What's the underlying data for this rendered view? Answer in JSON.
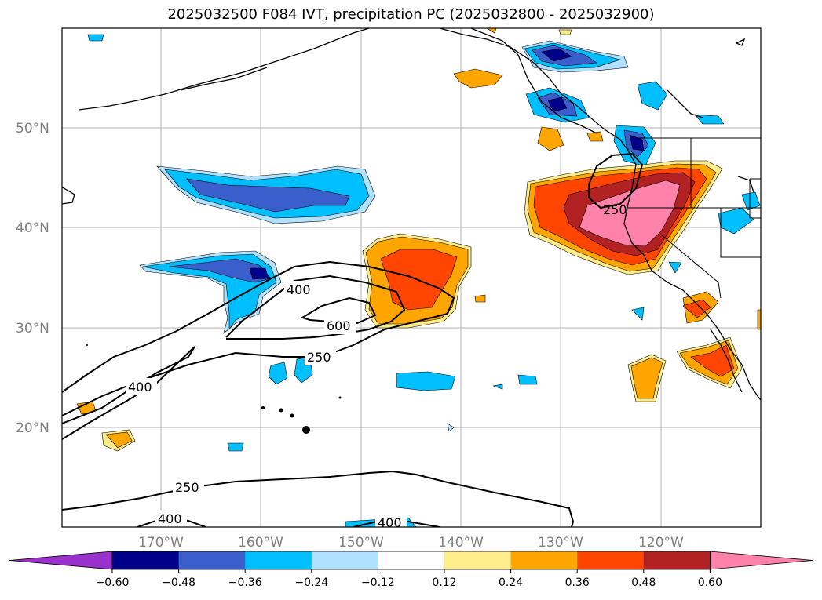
{
  "title": "2025032500 F084 IVT, precipitation PC (2025032800 - 2025032900)",
  "lat_labels": [
    "50°N",
    "40°N",
    "30°N",
    "20°N"
  ],
  "lon_labels": [
    "170°W",
    "160°W",
    "150°W",
    "140°W",
    "130°W",
    "120°W"
  ],
  "contour_labels": [
    "400",
    "600",
    "250",
    "400",
    "250",
    "400",
    "400",
    "250"
  ],
  "colorbar": {
    "ticks": [
      "−0.60",
      "−0.48",
      "−0.36",
      "−0.24",
      "−0.12",
      "0.12",
      "0.24",
      "0.36",
      "0.48",
      "0.60"
    ],
    "colors": [
      "#9932cc",
      "#00008b",
      "#3a5fcd",
      "#00bfff",
      "#b0e2ff",
      "#ffffff",
      "#ffec8b",
      "#ffa500",
      "#ff4500",
      "#b22222",
      "#ff82ab"
    ]
  }
}
